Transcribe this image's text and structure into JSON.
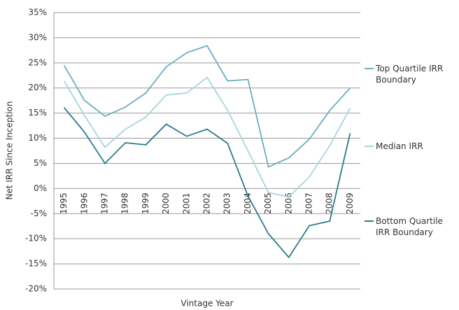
{
  "chart_data": {
    "type": "line",
    "x_label": "Vintage Year",
    "y_label": "Net IRR Since Inception",
    "categories": [
      "1995",
      "1996",
      "1997",
      "1998",
      "1999",
      "2000",
      "2001",
      "2002",
      "2003",
      "2004",
      "2005",
      "2006",
      "2007",
      "2008",
      "2009"
    ],
    "series": [
      {
        "name": "Top Quartile IRR Boundary",
        "color": "#6aaec4",
        "values": [
          24.5,
          17.5,
          14.4,
          16.2,
          19,
          24.2,
          27,
          28.4,
          21.4,
          21.7,
          4.3,
          6.1,
          9.8,
          15.5,
          20
        ]
      },
      {
        "name": "Median IRR",
        "color": "#aad4df",
        "values": [
          21.4,
          14.5,
          8.2,
          11.8,
          14.2,
          18.6,
          19,
          22.1,
          15.6,
          7.5,
          -0.8,
          -1.7,
          2.3,
          8.5,
          16
        ]
      },
      {
        "name": "Bottom Quartile IRR Boundary",
        "color": "#2b7b8d",
        "values": [
          16.1,
          11.2,
          5,
          9.1,
          8.7,
          12.8,
          10.4,
          11.8,
          9,
          -1.5,
          -9,
          -13.7,
          -7.4,
          -6.5,
          11
        ]
      }
    ],
    "ylim": [
      -20,
      35
    ],
    "yticks": [
      {
        "value": -20,
        "label": "-20%"
      },
      {
        "value": -15,
        "label": "-15%"
      },
      {
        "value": -10,
        "label": "-10%"
      },
      {
        "value": -5,
        "label": "-5%"
      },
      {
        "value": 0,
        "label": "0%"
      },
      {
        "value": 5,
        "label": "5%"
      },
      {
        "value": 10,
        "label": "10%"
      },
      {
        "value": 15,
        "label": "15%"
      },
      {
        "value": 20,
        "label": "20%"
      },
      {
        "value": 25,
        "label": "25%"
      },
      {
        "value": 30,
        "label": "30%"
      },
      {
        "value": 35,
        "label": "35%"
      }
    ],
    "grid": true
  }
}
